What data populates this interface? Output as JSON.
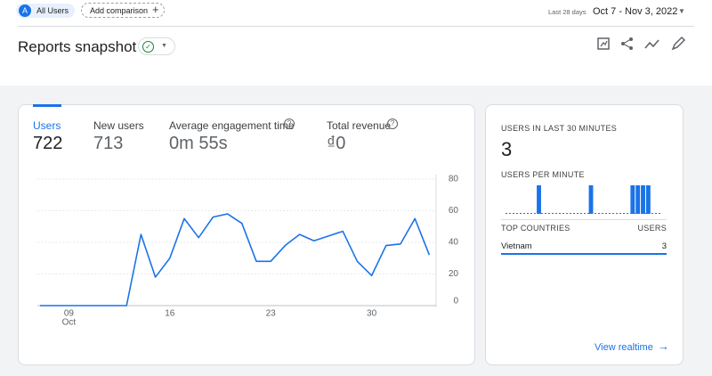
{
  "header": {
    "segment_letter": "A",
    "segment": "All Users",
    "add_comparison": "Add comparison",
    "range_label": "Last 28 days",
    "date_range": "Oct 7 - Nov 3, 2022"
  },
  "title": "Reports snapshot",
  "metrics": [
    {
      "label": "Users",
      "value": 722
    },
    {
      "label": "New users",
      "value": 713
    },
    {
      "label": "Average engagement time",
      "value": "0m 55s"
    },
    {
      "label": "Total revenue",
      "value": "₫0"
    }
  ],
  "chart_data": [
    {
      "type": "line",
      "color": "#1a73e8",
      "categories": [
        null,
        null,
        "09",
        null,
        null,
        null,
        null,
        null,
        null,
        "16",
        null,
        null,
        null,
        null,
        null,
        null,
        "23",
        null,
        null,
        null,
        null,
        null,
        null,
        "30",
        null,
        null,
        null,
        null
      ],
      "x_sublabel": "Oct",
      "values": [
        0,
        0,
        0,
        0,
        0,
        0,
        0,
        45,
        18,
        30,
        55,
        43,
        56,
        58,
        52,
        28,
        28,
        38,
        45,
        41,
        44,
        47,
        28,
        19,
        38,
        39,
        55,
        32
      ],
      "ylim": [
        0,
        80
      ],
      "yticks": [
        0,
        20,
        40,
        60,
        80
      ],
      "grid": true
    },
    {
      "type": "bar",
      "title": "USERS PER MINUTE",
      "color": "#1a73e8",
      "values": [
        0,
        0,
        0,
        0,
        0,
        0,
        1,
        0,
        0,
        0,
        0,
        0,
        0,
        0,
        0,
        0,
        1,
        0,
        0,
        0,
        0,
        0,
        0,
        0,
        1,
        1,
        1,
        1,
        0,
        0
      ],
      "ylim": [
        0,
        1
      ]
    }
  ],
  "realtime": {
    "title": "USERS IN LAST 30 MINUTES",
    "value": 3,
    "table": {
      "headers": [
        "TOP COUNTRIES",
        "USERS"
      ],
      "rows": [
        [
          "Vietnam",
          3
        ]
      ]
    },
    "link": "View realtime"
  }
}
